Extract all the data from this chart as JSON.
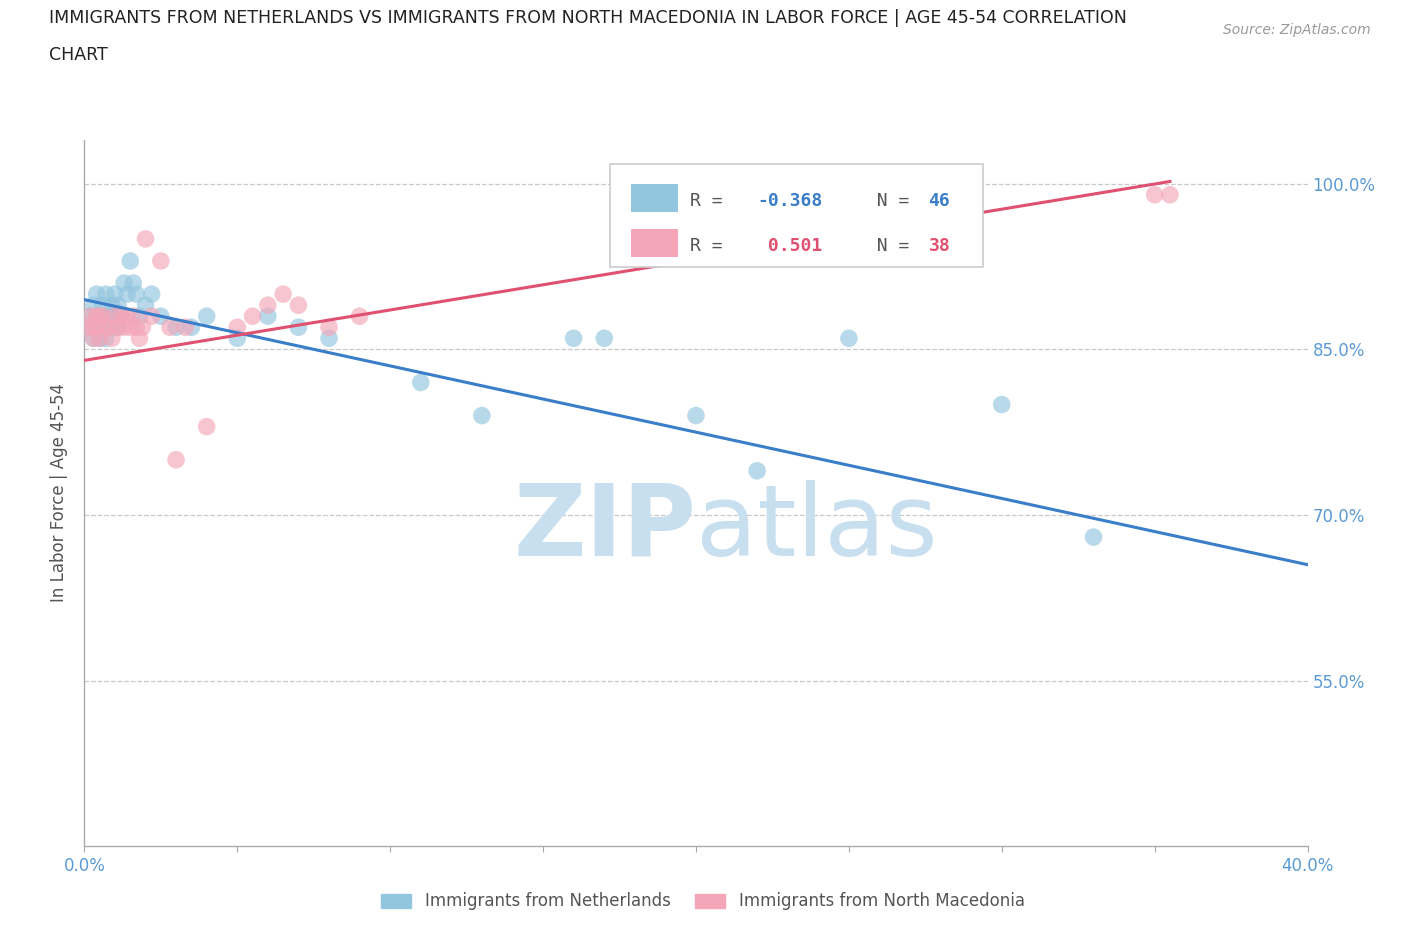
{
  "title_line1": "IMMIGRANTS FROM NETHERLANDS VS IMMIGRANTS FROM NORTH MACEDONIA IN LABOR FORCE | AGE 45-54 CORRELATION",
  "title_line2": "CHART",
  "source_text": "Source: ZipAtlas.com",
  "ylabel": "In Labor Force | Age 45-54",
  "xlim": [
    0.0,
    0.4
  ],
  "ylim": [
    0.4,
    1.04
  ],
  "xticks": [
    0.0,
    0.05,
    0.1,
    0.15,
    0.2,
    0.25,
    0.3,
    0.35,
    0.4
  ],
  "ytick_labels_right": [
    "100.0%",
    "85.0%",
    "70.0%",
    "55.0%"
  ],
  "ytick_values_right": [
    1.0,
    0.85,
    0.7,
    0.55
  ],
  "legend_blue_r": "R = -0.368",
  "legend_blue_n": "N = 46",
  "legend_pink_r": "R =  0.501",
  "legend_pink_n": "N = 38",
  "blue_color": "#92c5de",
  "pink_color": "#f4a6b8",
  "blue_line_color": "#3a7dc9",
  "pink_line_color": "#e05070",
  "watermark_zip": "ZIP",
  "watermark_atlas": "atlas",
  "watermark_color": "#c8dff0",
  "background_color": "#ffffff",
  "blue_scatter_x": [
    0.001,
    0.002,
    0.003,
    0.003,
    0.004,
    0.004,
    0.005,
    0.005,
    0.006,
    0.006,
    0.007,
    0.007,
    0.008,
    0.008,
    0.009,
    0.009,
    0.01,
    0.01,
    0.011,
    0.011,
    0.012,
    0.013,
    0.014,
    0.015,
    0.016,
    0.017,
    0.018,
    0.02,
    0.022,
    0.025,
    0.03,
    0.035,
    0.04,
    0.05,
    0.06,
    0.07,
    0.08,
    0.11,
    0.13,
    0.16,
    0.17,
    0.2,
    0.22,
    0.25,
    0.3,
    0.33
  ],
  "blue_scatter_y": [
    0.87,
    0.88,
    0.86,
    0.89,
    0.87,
    0.9,
    0.86,
    0.88,
    0.87,
    0.89,
    0.86,
    0.9,
    0.87,
    0.88,
    0.87,
    0.89,
    0.88,
    0.9,
    0.87,
    0.89,
    0.88,
    0.91,
    0.9,
    0.93,
    0.91,
    0.9,
    0.88,
    0.89,
    0.9,
    0.88,
    0.87,
    0.87,
    0.88,
    0.86,
    0.88,
    0.87,
    0.86,
    0.82,
    0.79,
    0.86,
    0.86,
    0.79,
    0.74,
    0.86,
    0.8,
    0.68
  ],
  "pink_scatter_x": [
    0.001,
    0.002,
    0.003,
    0.003,
    0.004,
    0.004,
    0.005,
    0.005,
    0.006,
    0.007,
    0.008,
    0.009,
    0.01,
    0.011,
    0.012,
    0.013,
    0.014,
    0.015,
    0.016,
    0.017,
    0.018,
    0.019,
    0.02,
    0.022,
    0.025,
    0.028,
    0.03,
    0.033,
    0.04,
    0.05,
    0.055,
    0.06,
    0.065,
    0.07,
    0.08,
    0.09,
    0.35,
    0.355
  ],
  "pink_scatter_y": [
    0.87,
    0.88,
    0.86,
    0.87,
    0.87,
    0.88,
    0.86,
    0.88,
    0.88,
    0.87,
    0.87,
    0.86,
    0.88,
    0.87,
    0.88,
    0.87,
    0.88,
    0.87,
    0.88,
    0.87,
    0.86,
    0.87,
    0.95,
    0.88,
    0.93,
    0.87,
    0.75,
    0.87,
    0.78,
    0.87,
    0.88,
    0.89,
    0.9,
    0.89,
    0.87,
    0.88,
    0.99,
    0.99
  ],
  "blue_trend_x": [
    0.0,
    0.4
  ],
  "blue_trend_y": [
    0.895,
    0.655
  ],
  "pink_trend_x": [
    0.0,
    0.355
  ],
  "pink_trend_y": [
    0.84,
    1.002
  ]
}
